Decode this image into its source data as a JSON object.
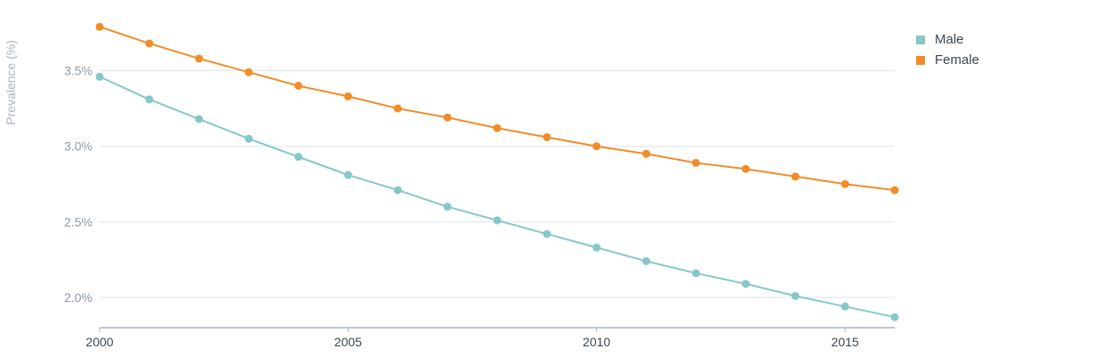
{
  "chart_data": {
    "type": "line",
    "ylabel": "Prevalence (%)",
    "xlabel": "",
    "x": [
      2000,
      2001,
      2002,
      2003,
      2004,
      2005,
      2006,
      2007,
      2008,
      2009,
      2010,
      2011,
      2012,
      2013,
      2014,
      2015,
      2016
    ],
    "x_ticks": [
      "2000",
      "2005",
      "2010",
      "2015"
    ],
    "y_ticks": [
      "2.0%",
      "2.5%",
      "3.0%",
      "3.5%"
    ],
    "ylim": [
      1.8,
      3.85
    ],
    "xlim": [
      2000,
      2016
    ],
    "grid": true,
    "legend_position": "top-right",
    "series": [
      {
        "name": "Male",
        "color": "#86c8c8",
        "values": [
          3.46,
          3.31,
          3.18,
          3.05,
          2.93,
          2.81,
          2.71,
          2.6,
          2.51,
          2.42,
          2.33,
          2.24,
          2.16,
          2.09,
          2.01,
          1.94,
          1.87
        ]
      },
      {
        "name": "Female",
        "color": "#f28c28",
        "values": [
          3.79,
          3.68,
          3.58,
          3.49,
          3.4,
          3.33,
          3.25,
          3.19,
          3.12,
          3.06,
          3.0,
          2.95,
          2.89,
          2.85,
          2.8,
          2.75,
          2.71
        ]
      }
    ]
  }
}
